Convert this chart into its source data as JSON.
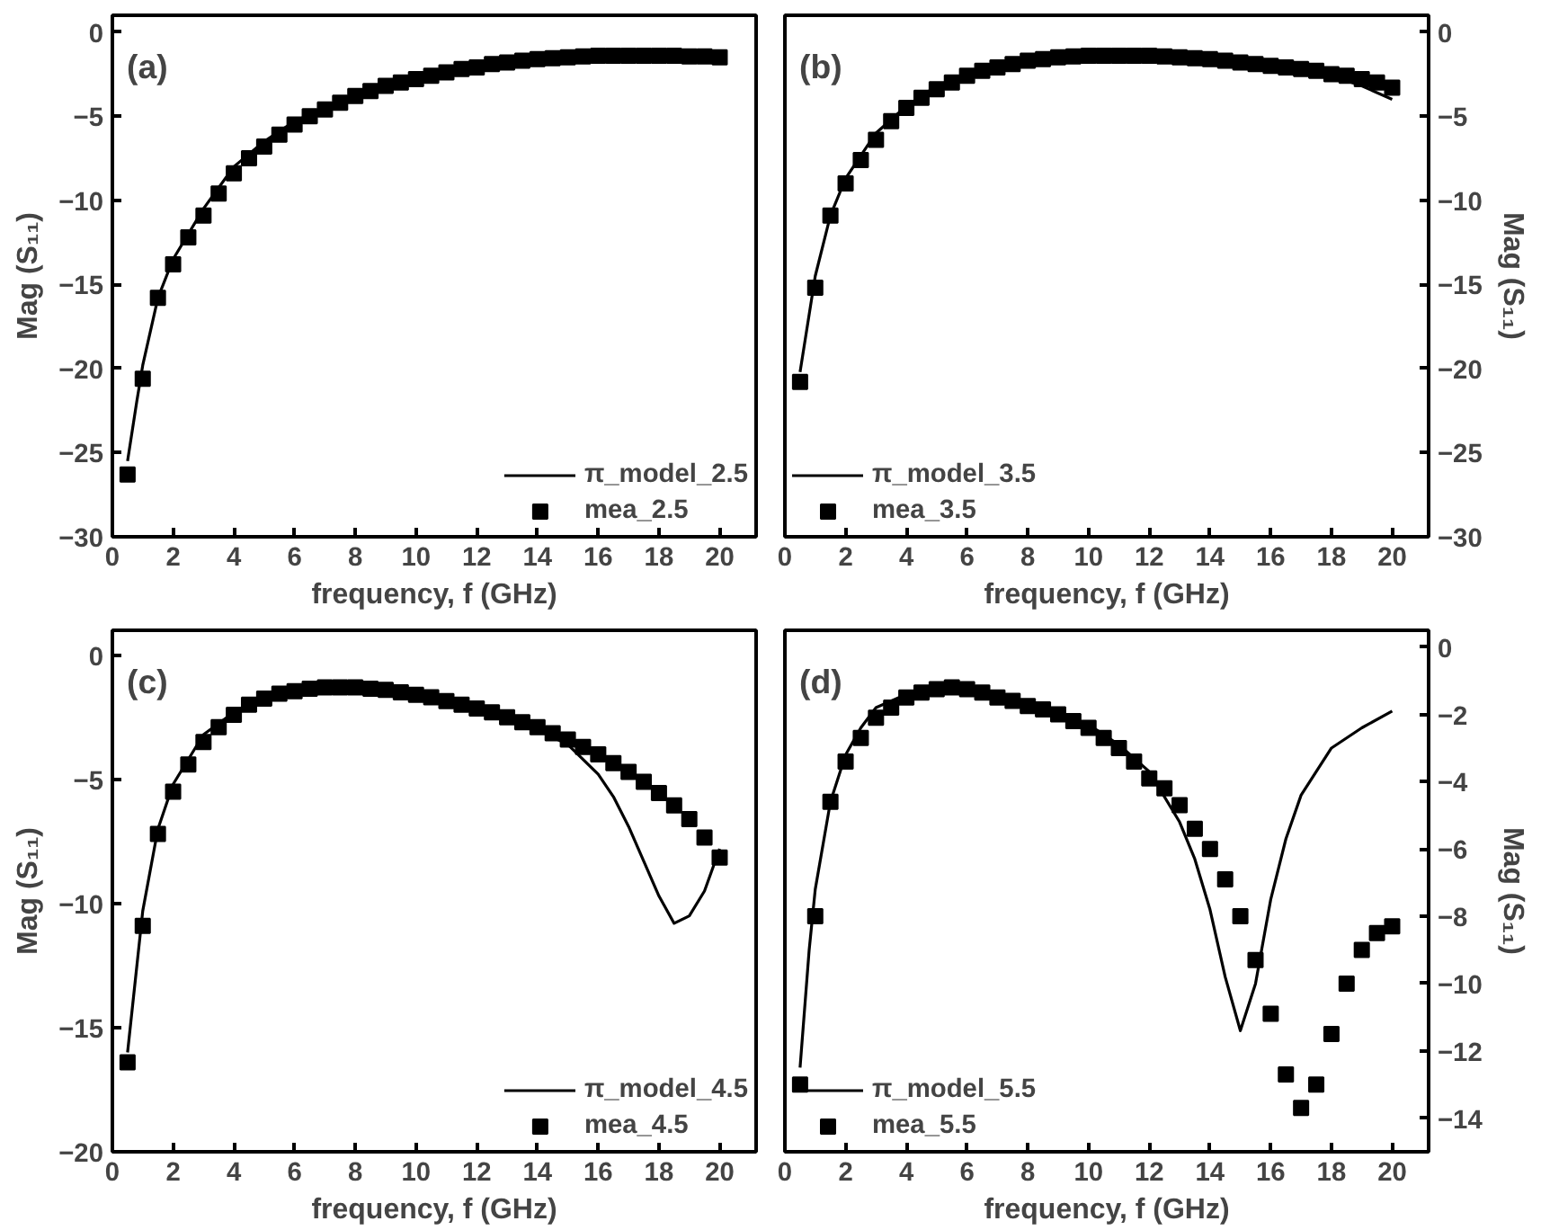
{
  "chart_data": [
    {
      "type": "line",
      "title": "(a)",
      "xlabel": "frequency, f (GHz)",
      "ylabel": "Mag (S₁₁)",
      "xlim": [
        0,
        21.2
      ],
      "ylim": [
        -30,
        1
      ],
      "xticks": [
        0,
        2,
        4,
        6,
        8,
        10,
        12,
        14,
        16,
        18,
        20
      ],
      "yticks": [
        0,
        -5,
        -10,
        -15,
        -20,
        -25,
        -30
      ],
      "legend": "bottom right",
      "grid": false,
      "series": [
        {
          "name": "π_model_2.5",
          "type": "line",
          "color": "#000000",
          "line_style": "solid",
          "x": [
            0.5,
            0.8,
            1,
            1.5,
            2,
            3,
            4,
            5,
            6,
            8,
            10,
            12,
            14,
            16,
            18,
            20
          ],
          "values": [
            -25.5,
            -22,
            -19.8,
            -15.8,
            -13.5,
            -10.5,
            -8.0,
            -6.5,
            -5.3,
            -3.7,
            -2.7,
            -2.0,
            -1.6,
            -1.4,
            -1.35,
            -1.4
          ]
        },
        {
          "name": "mea_2.5",
          "type": "scatter",
          "marker": "square",
          "color": "#000000",
          "x": [
            0.5,
            1,
            1.5,
            2,
            2.5,
            3,
            3.5,
            4,
            4.5,
            5,
            5.5,
            6,
            6.5,
            7,
            7.5,
            8,
            8.5,
            9,
            9.5,
            10,
            10.5,
            11,
            11.5,
            12,
            12.5,
            13,
            13.5,
            14,
            14.5,
            15,
            15.5,
            16,
            16.5,
            17,
            17.5,
            18,
            18.5,
            19,
            19.5,
            20
          ],
          "values": [
            -26.3,
            -20.6,
            -15.8,
            -13.8,
            -12.2,
            -10.9,
            -9.6,
            -8.4,
            -7.5,
            -6.8,
            -6.1,
            -5.5,
            -5.0,
            -4.6,
            -4.2,
            -3.8,
            -3.5,
            -3.2,
            -3.0,
            -2.8,
            -2.6,
            -2.4,
            -2.2,
            -2.1,
            -1.9,
            -1.8,
            -1.7,
            -1.6,
            -1.55,
            -1.5,
            -1.45,
            -1.4,
            -1.4,
            -1.4,
            -1.4,
            -1.4,
            -1.4,
            -1.45,
            -1.45,
            -1.5
          ]
        }
      ]
    },
    {
      "type": "line",
      "title": "(b)",
      "xlabel": "frequency, f (GHz)",
      "y2label": "Mag (S₁₁)",
      "xlim": [
        0,
        21.2
      ],
      "y2lim": [
        -30,
        1
      ],
      "xticks": [
        0,
        2,
        4,
        6,
        8,
        10,
        12,
        14,
        16,
        18,
        20
      ],
      "y2ticks": [
        0,
        -5,
        -10,
        -15,
        -20,
        -25,
        -30
      ],
      "legend": "bottom left",
      "grid": false,
      "series": [
        {
          "name": "π_model_3.5",
          "type": "line",
          "axis": "y2",
          "color": "#000000",
          "line_style": "solid",
          "x": [
            0.5,
            1,
            1.5,
            2,
            3,
            4,
            5,
            6,
            8,
            10,
            12,
            14,
            16,
            18,
            19,
            20
          ],
          "values": [
            -20.2,
            -14.5,
            -10.9,
            -8.7,
            -6.0,
            -4.4,
            -3.2,
            -2.5,
            -1.7,
            -1.4,
            -1.4,
            -1.6,
            -2.0,
            -2.6,
            -3.2,
            -4.0
          ]
        },
        {
          "name": "mea_3.5",
          "type": "scatter",
          "axis": "y2",
          "marker": "square",
          "color": "#000000",
          "x": [
            0.5,
            1,
            1.5,
            2,
            2.5,
            3,
            3.5,
            4,
            4.5,
            5,
            5.5,
            6,
            6.5,
            7,
            7.5,
            8,
            8.5,
            9,
            9.5,
            10,
            10.5,
            11,
            11.5,
            12,
            12.5,
            13,
            13.5,
            14,
            14.5,
            15,
            15.5,
            16,
            16.5,
            17,
            17.5,
            18,
            18.5,
            19,
            19.5,
            20
          ],
          "values": [
            -20.8,
            -15.2,
            -10.9,
            -9.0,
            -7.6,
            -6.4,
            -5.3,
            -4.5,
            -3.9,
            -3.4,
            -3.0,
            -2.6,
            -2.3,
            -2.1,
            -1.9,
            -1.7,
            -1.6,
            -1.5,
            -1.45,
            -1.4,
            -1.4,
            -1.4,
            -1.4,
            -1.4,
            -1.45,
            -1.5,
            -1.55,
            -1.6,
            -1.7,
            -1.8,
            -1.9,
            -2.0,
            -2.1,
            -2.2,
            -2.3,
            -2.5,
            -2.6,
            -2.8,
            -3.0,
            -3.3
          ]
        }
      ]
    },
    {
      "type": "line",
      "title": "(c)",
      "xlabel": "frequency, f (GHz)",
      "ylabel": "Mag (S₁₁)",
      "xlim": [
        0,
        21.2
      ],
      "ylim": [
        -20,
        1
      ],
      "xticks": [
        0,
        2,
        4,
        6,
        8,
        10,
        12,
        14,
        16,
        18,
        20
      ],
      "yticks": [
        0,
        -5,
        -10,
        -15,
        -20
      ],
      "legend": "bottom right",
      "grid": false,
      "series": [
        {
          "name": "π_model_4.5",
          "type": "line",
          "color": "#000000",
          "line_style": "solid",
          "x": [
            0.5,
            1,
            1.5,
            2,
            3,
            4,
            5,
            6,
            8,
            10,
            12,
            13,
            14,
            15,
            16,
            16.5,
            17,
            17.5,
            18,
            18.5,
            19,
            19.5,
            20
          ],
          "values": [
            -16,
            -10.3,
            -7.0,
            -5.2,
            -3.2,
            -2.3,
            -1.7,
            -1.4,
            -1.3,
            -1.55,
            -2.1,
            -2.5,
            -3.0,
            -3.6,
            -4.8,
            -5.7,
            -6.9,
            -8.3,
            -9.7,
            -10.8,
            -10.5,
            -9.5,
            -7.8
          ]
        },
        {
          "name": "mea_4.5",
          "type": "scatter",
          "marker": "square",
          "color": "#000000",
          "x": [
            0.5,
            1,
            1.5,
            2,
            2.5,
            3,
            3.5,
            4,
            4.5,
            5,
            5.5,
            6,
            6.5,
            7,
            7.5,
            8,
            8.5,
            9,
            9.5,
            10,
            10.5,
            11,
            11.5,
            12,
            12.5,
            13,
            13.5,
            14,
            14.5,
            15,
            15.5,
            16,
            16.5,
            17,
            17.5,
            18,
            18.5,
            19,
            19.5,
            20
          ],
          "values": [
            -16.4,
            -10.9,
            -7.2,
            -5.5,
            -4.4,
            -3.5,
            -2.9,
            -2.4,
            -2.0,
            -1.75,
            -1.55,
            -1.45,
            -1.35,
            -1.3,
            -1.3,
            -1.3,
            -1.35,
            -1.4,
            -1.5,
            -1.6,
            -1.7,
            -1.85,
            -2.0,
            -2.15,
            -2.3,
            -2.5,
            -2.7,
            -2.9,
            -3.15,
            -3.4,
            -3.7,
            -4.0,
            -4.35,
            -4.7,
            -5.1,
            -5.55,
            -6.05,
            -6.6,
            -7.35,
            -8.15
          ]
        }
      ]
    },
    {
      "type": "line",
      "title": "(d)",
      "xlabel": "frequency, f (GHz)",
      "y2label": "Mag (S₁₁)",
      "xlim": [
        0,
        21.2
      ],
      "y2lim": [
        -15,
        0.5
      ],
      "xticks": [
        0,
        2,
        4,
        6,
        8,
        10,
        12,
        14,
        16,
        18,
        20
      ],
      "y2ticks": [
        0,
        -2,
        -4,
        -6,
        -8,
        -10,
        -12,
        -14
      ],
      "legend": "bottom left",
      "grid": false,
      "series": [
        {
          "name": "π_model_5.5",
          "type": "line",
          "axis": "y2",
          "color": "#000000",
          "line_style": "solid",
          "x": [
            0.5,
            0.8,
            1,
            1.5,
            2,
            2.5,
            3,
            4,
            5,
            6,
            8,
            10,
            11,
            12,
            13,
            13.5,
            14,
            14.5,
            15,
            15.5,
            16,
            16.5,
            17,
            18,
            19,
            20
          ],
          "values": [
            -12.5,
            -9,
            -7.2,
            -4.6,
            -3.2,
            -2.4,
            -1.8,
            -1.4,
            -1.2,
            -1.25,
            -1.7,
            -2.3,
            -2.9,
            -3.7,
            -5.2,
            -6.3,
            -7.8,
            -9.8,
            -11.4,
            -10.0,
            -7.5,
            -5.7,
            -4.4,
            -3.0,
            -2.4,
            -1.9
          ]
        },
        {
          "name": "mea_5.5",
          "type": "scatter",
          "axis": "y2",
          "marker": "square",
          "color": "#000000",
          "x": [
            0.5,
            1,
            1.5,
            2,
            2.5,
            3,
            3.5,
            4,
            4.5,
            5,
            5.5,
            6,
            6.5,
            7,
            7.5,
            8,
            8.5,
            9,
            9.5,
            10,
            10.5,
            11,
            11.5,
            12,
            12.5,
            13,
            13.5,
            14,
            14.5,
            15,
            15.5,
            16,
            16.5,
            17,
            17.5,
            18,
            18.5,
            19,
            19.5,
            20
          ],
          "values": [
            -13.0,
            -8.0,
            -4.6,
            -3.4,
            -2.7,
            -2.1,
            -1.8,
            -1.5,
            -1.35,
            -1.25,
            -1.2,
            -1.25,
            -1.35,
            -1.5,
            -1.6,
            -1.75,
            -1.85,
            -2.0,
            -2.2,
            -2.4,
            -2.7,
            -3.0,
            -3.4,
            -3.9,
            -4.2,
            -4.7,
            -5.4,
            -6.0,
            -6.9,
            -8.0,
            -9.3,
            -10.9,
            -12.7,
            -13.7,
            -13.0,
            -11.5,
            -10.0,
            -9.0,
            -8.5,
            -8.3
          ]
        }
      ]
    }
  ]
}
